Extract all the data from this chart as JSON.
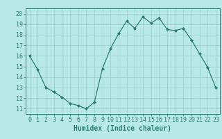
{
  "x": [
    0,
    1,
    2,
    3,
    4,
    5,
    6,
    7,
    8,
    9,
    10,
    11,
    12,
    13,
    14,
    15,
    16,
    17,
    18,
    19,
    20,
    21,
    22,
    23
  ],
  "y": [
    16,
    14.7,
    13,
    12.6,
    12.1,
    11.5,
    11.3,
    11.0,
    11.6,
    14.8,
    16.7,
    18.1,
    19.3,
    18.6,
    19.7,
    19.1,
    19.6,
    18.5,
    18.4,
    18.6,
    17.5,
    16.2,
    14.9,
    13.0
  ],
  "xlabel": "Humidex (Indice chaleur)",
  "xlim": [
    -0.5,
    23.5
  ],
  "ylim": [
    10.5,
    20.5
  ],
  "yticks": [
    11,
    12,
    13,
    14,
    15,
    16,
    17,
    18,
    19,
    20
  ],
  "xticks": [
    0,
    1,
    2,
    3,
    4,
    5,
    6,
    7,
    8,
    9,
    10,
    11,
    12,
    13,
    14,
    15,
    16,
    17,
    18,
    19,
    20,
    21,
    22,
    23
  ],
  "line_color": "#2e7d6e",
  "marker": "D",
  "marker_size": 2.0,
  "bg_color": "#b8e8e8",
  "grid_color": "#99cccc",
  "xlabel_fontsize": 7,
  "tick_fontsize": 6
}
